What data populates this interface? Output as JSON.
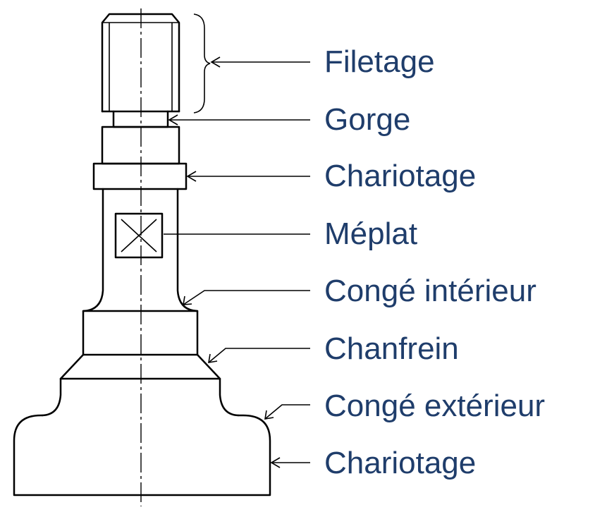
{
  "labels": [
    {
      "id": "filetage",
      "text": "Filetage"
    },
    {
      "id": "gorge",
      "text": "Gorge"
    },
    {
      "id": "chariotage-1",
      "text": "Chariotage"
    },
    {
      "id": "meplat",
      "text": "Méplat"
    },
    {
      "id": "conge-interieur",
      "text": "Congé intérieur"
    },
    {
      "id": "chanfrein",
      "text": "Chanfrein"
    },
    {
      "id": "conge-exterieur",
      "text": "Congé extérieur"
    },
    {
      "id": "chariotage-2",
      "text": "Chariotage"
    }
  ],
  "colors": {
    "label_text": "#1f3d6b",
    "line": "#000000",
    "background": "#ffffff"
  }
}
